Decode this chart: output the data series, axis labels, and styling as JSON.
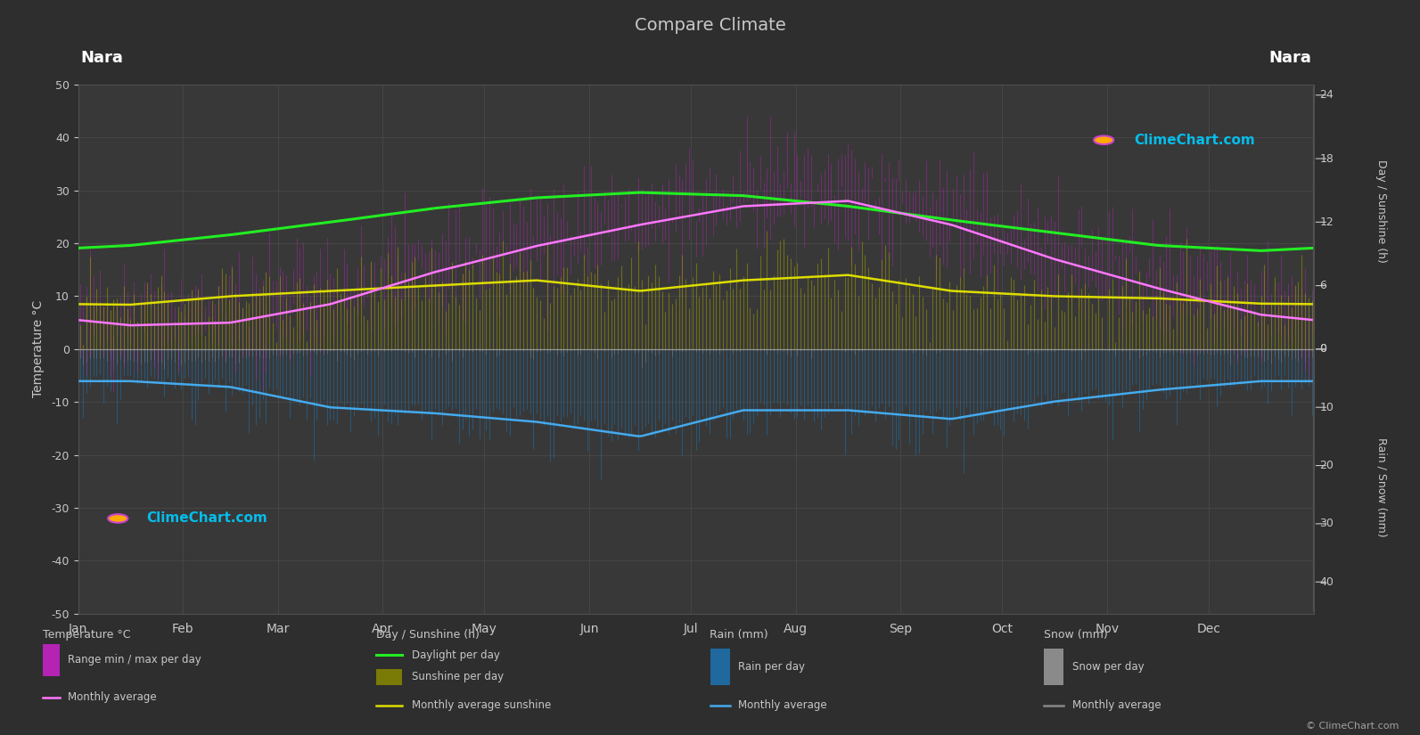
{
  "title": "Compare Climate",
  "location": "Nara",
  "bg_color": "#2e2e2e",
  "plot_bg_color": "#383838",
  "grid_color": "#505050",
  "text_color": "#c8c8c8",
  "months": [
    "Jan",
    "Feb",
    "Mar",
    "Apr",
    "May",
    "Jun",
    "Jul",
    "Aug",
    "Sep",
    "Oct",
    "Nov",
    "Dec"
  ],
  "days_in_month": [
    31,
    28,
    31,
    30,
    31,
    30,
    31,
    31,
    30,
    31,
    30,
    31
  ],
  "temp_ylim": [
    -50,
    50
  ],
  "temp_avg": [
    4.5,
    5.0,
    8.5,
    14.5,
    19.5,
    23.5,
    27.0,
    28.0,
    23.5,
    17.0,
    11.5,
    6.5
  ],
  "temp_max_monthly": [
    9.5,
    10.5,
    15.0,
    21.0,
    26.0,
    29.5,
    33.5,
    34.5,
    29.5,
    23.0,
    17.0,
    12.0
  ],
  "temp_min_monthly": [
    0.5,
    1.0,
    3.5,
    9.0,
    14.5,
    19.5,
    23.5,
    24.5,
    19.5,
    12.5,
    6.5,
    2.0
  ],
  "daylight_hours": [
    9.8,
    10.8,
    12.0,
    13.3,
    14.3,
    14.8,
    14.5,
    13.5,
    12.2,
    11.0,
    9.8,
    9.3
  ],
  "sunshine_hours_daily": [
    4.2,
    5.0,
    5.5,
    6.0,
    6.5,
    5.5,
    6.5,
    7.0,
    5.5,
    5.0,
    4.8,
    4.3
  ],
  "rain_per_day_mm": [
    4.0,
    5.0,
    9.0,
    9.5,
    10.0,
    13.0,
    9.0,
    9.0,
    10.0,
    7.5,
    5.5,
    4.5
  ],
  "snow_per_day_mm": [
    3.5,
    2.5,
    0.5,
    0.0,
    0.0,
    0.0,
    0.0,
    0.0,
    0.0,
    0.0,
    0.5,
    2.0
  ],
  "rain_monthly_avg_mm": [
    5.5,
    6.5,
    10.0,
    11.0,
    12.5,
    15.0,
    10.5,
    10.5,
    12.0,
    9.0,
    7.0,
    5.5
  ],
  "snow_monthly_avg_mm": [
    2.5,
    2.0,
    0.3,
    0.0,
    0.0,
    0.0,
    0.0,
    0.0,
    0.0,
    0.0,
    0.3,
    1.5
  ],
  "daylight_scale": 2.0,
  "rain_scale": -1.1,
  "temp_noise_std": 4.0,
  "rain_noise_scale": 2.5,
  "snow_noise_scale": 0.8,
  "sunshine_noise_std": 1.8
}
